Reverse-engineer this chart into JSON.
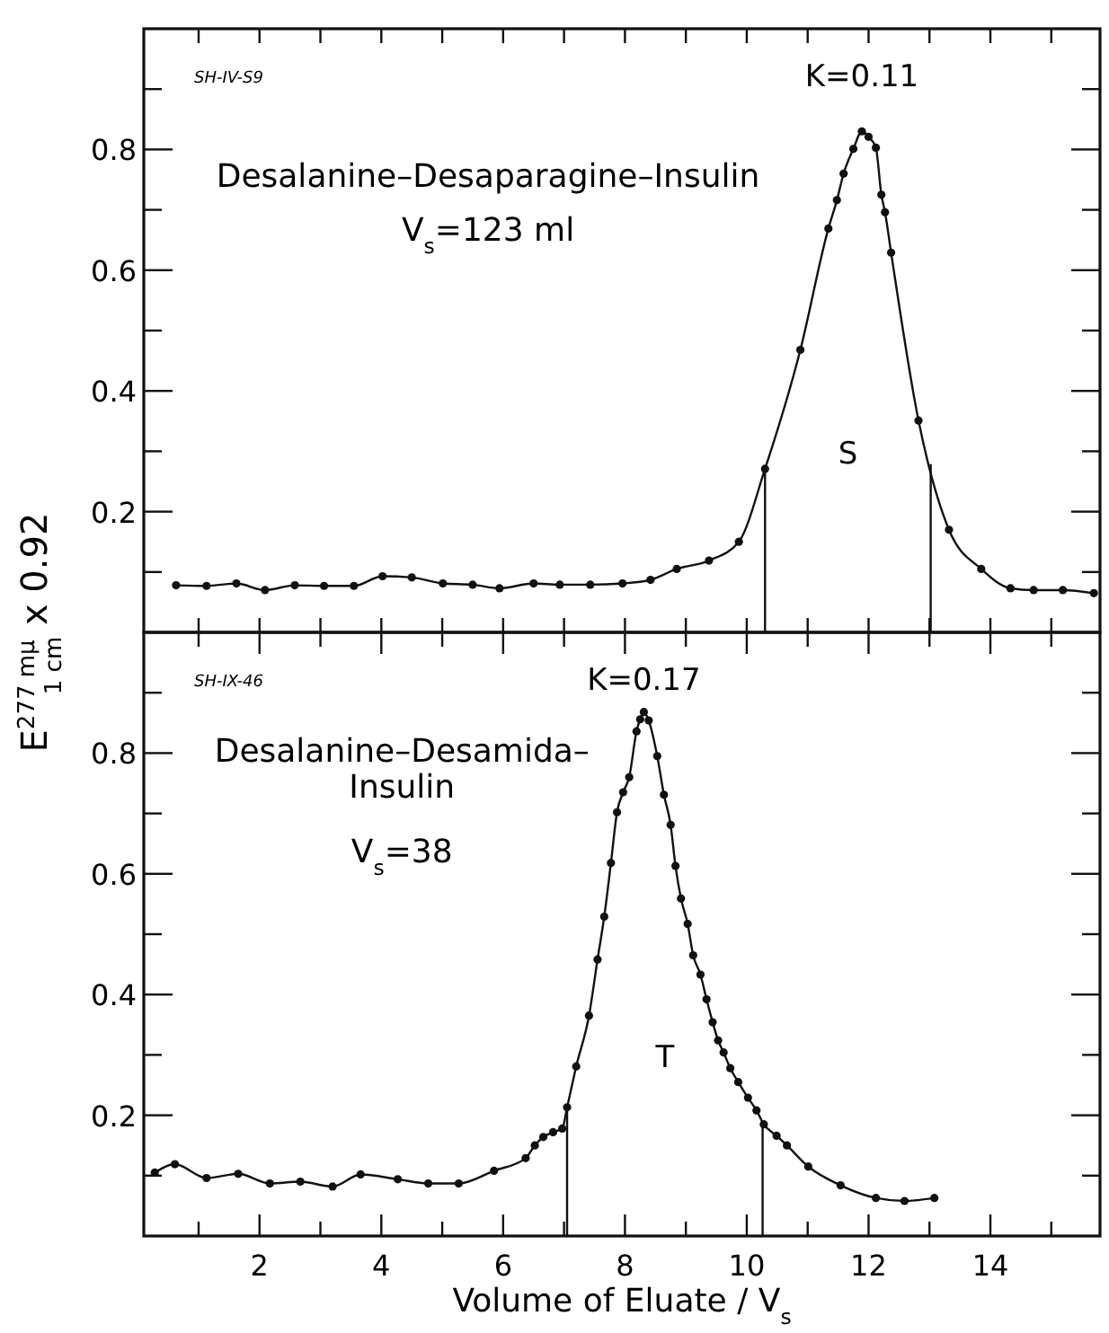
{
  "chart_data": [
    {
      "type": "line",
      "ylabel": "E$^{277 mμ}$$_{1 cm}$ x 0.92",
      "xlim": [
        0.1,
        15.8
      ],
      "ylim": [
        0,
        1.0
      ],
      "xticks": [
        {
          "value": 1,
          "label": null
        },
        {
          "value": 2,
          "label": null
        },
        {
          "value": 3,
          "label": null
        },
        {
          "value": 4,
          "label": null
        },
        {
          "value": 5,
          "label": null
        },
        {
          "value": 6,
          "label": null
        },
        {
          "value": 7,
          "label": null
        },
        {
          "value": 8,
          "label": null
        },
        {
          "value": 9,
          "label": null
        },
        {
          "value": 10,
          "label": null
        },
        {
          "value": 11,
          "label": null
        },
        {
          "value": 12,
          "label": null
        },
        {
          "value": 13,
          "label": null
        },
        {
          "value": 14,
          "label": null
        },
        {
          "value": 15,
          "label": null
        }
      ],
      "yticks": [
        {
          "value": 0.1,
          "label": null
        },
        0.2,
        {
          "value": 0.3,
          "label": null
        },
        0.4,
        {
          "value": 0.5,
          "label": null
        },
        0.6,
        {
          "value": 0.7,
          "label": null
        },
        0.8,
        {
          "value": 0.9,
          "label": null
        }
      ],
      "tick_labels": "y",
      "grid": false,
      "marker": "circle",
      "line_style": "solid",
      "x": [
        0.63,
        1.13,
        1.62,
        2.09,
        2.58,
        3.06,
        3.55,
        4.02,
        4.5,
        5.01,
        5.5,
        5.94,
        6.5,
        6.93,
        7.43,
        7.96,
        8.42,
        8.85,
        9.38,
        9.87,
        10.3,
        10.88,
        11.34,
        11.48,
        11.59,
        11.75,
        11.89,
        12.0,
        12.12,
        12.21,
        12.27,
        12.37,
        12.82,
        13.32,
        13.85,
        14.33,
        14.71,
        15.19,
        15.7
      ],
      "series": [
        {
          "color": "#111111",
          "values": [
            0.078,
            0.077,
            0.081,
            0.07,
            0.078,
            0.077,
            0.077,
            0.093,
            0.091,
            0.081,
            0.079,
            0.073,
            0.081,
            0.079,
            0.079,
            0.081,
            0.087,
            0.105,
            0.119,
            0.15,
            0.271,
            0.468,
            0.669,
            0.716,
            0.76,
            0.801,
            0.83,
            0.821,
            0.803,
            0.725,
            0.696,
            0.629,
            0.351,
            0.17,
            0.105,
            0.073,
            0.07,
            0.07,
            0.065
          ]
        }
      ],
      "ref_lines": [
        {
          "axis": "x",
          "value": 10.3
        },
        {
          "axis": "x",
          "value": 13.02
        }
      ],
      "annotations": [
        "SH-IV-S9",
        "K=0.11",
        "S",
        "Desalanine–Desaparagine–Insulin",
        "V$_{s}$=123 ml"
      ]
    },
    {
      "type": "line",
      "xlabel": "Volume of Eluate / V$_{s}$",
      "xlim": [
        0.1,
        15.8
      ],
      "ylim": [
        0,
        1.0
      ],
      "xticks": [
        {
          "value": 1,
          "label": null
        },
        2,
        {
          "value": 3,
          "label": null
        },
        4,
        {
          "value": 5,
          "label": null
        },
        6,
        {
          "value": 7,
          "label": null
        },
        8,
        {
          "value": 9,
          "label": null
        },
        10,
        {
          "value": 11,
          "label": null
        },
        12,
        {
          "value": 13,
          "label": null
        },
        14,
        {
          "value": 15,
          "label": null
        }
      ],
      "yticks": [
        {
          "value": 0.1,
          "label": null
        },
        0.2,
        {
          "value": 0.3,
          "label": null
        },
        0.4,
        {
          "value": 0.5,
          "label": null
        },
        0.6,
        {
          "value": 0.7,
          "label": null
        },
        0.8,
        {
          "value": 0.9,
          "label": null
        }
      ],
      "grid": false,
      "marker": "circle",
      "line_style": "solid",
      "x": [
        0.28,
        0.61,
        1.13,
        1.65,
        2.17,
        2.67,
        3.2,
        3.66,
        4.27,
        4.77,
        5.27,
        5.85,
        6.37,
        6.52,
        6.66,
        6.82,
        6.97,
        7.05,
        7.2,
        7.41,
        7.55,
        7.66,
        7.77,
        7.87,
        7.97,
        8.07,
        8.19,
        8.25,
        8.31,
        8.39,
        8.53,
        8.64,
        8.75,
        8.83,
        8.92,
        9.03,
        9.12,
        9.24,
        9.34,
        9.44,
        9.53,
        9.62,
        9.73,
        9.86,
        10.02,
        10.16,
        10.28,
        10.49,
        10.66,
        11.01,
        11.54,
        12.12,
        12.59,
        13.08
      ],
      "series": [
        {
          "color": "#111111",
          "values": [
            0.105,
            0.119,
            0.096,
            0.103,
            0.087,
            0.09,
            0.082,
            0.102,
            0.094,
            0.087,
            0.087,
            0.108,
            0.129,
            0.15,
            0.164,
            0.172,
            0.178,
            0.213,
            0.281,
            0.365,
            0.458,
            0.529,
            0.618,
            0.702,
            0.735,
            0.76,
            0.836,
            0.856,
            0.868,
            0.854,
            0.795,
            0.731,
            0.681,
            0.613,
            0.559,
            0.517,
            0.465,
            0.433,
            0.392,
            0.354,
            0.324,
            0.304,
            0.278,
            0.255,
            0.229,
            0.208,
            0.185,
            0.166,
            0.15,
            0.115,
            0.084,
            0.063,
            0.058,
            0.063
          ]
        }
      ],
      "ref_lines": [
        {
          "axis": "x",
          "value": 7.05
        },
        {
          "axis": "x",
          "value": 10.26
        }
      ],
      "annotations": [
        "SH-IX-46",
        "K=0.17",
        "T",
        "Desalanine–Desamida–",
        "Insulin",
        "V$_{s}$=38"
      ]
    }
  ]
}
